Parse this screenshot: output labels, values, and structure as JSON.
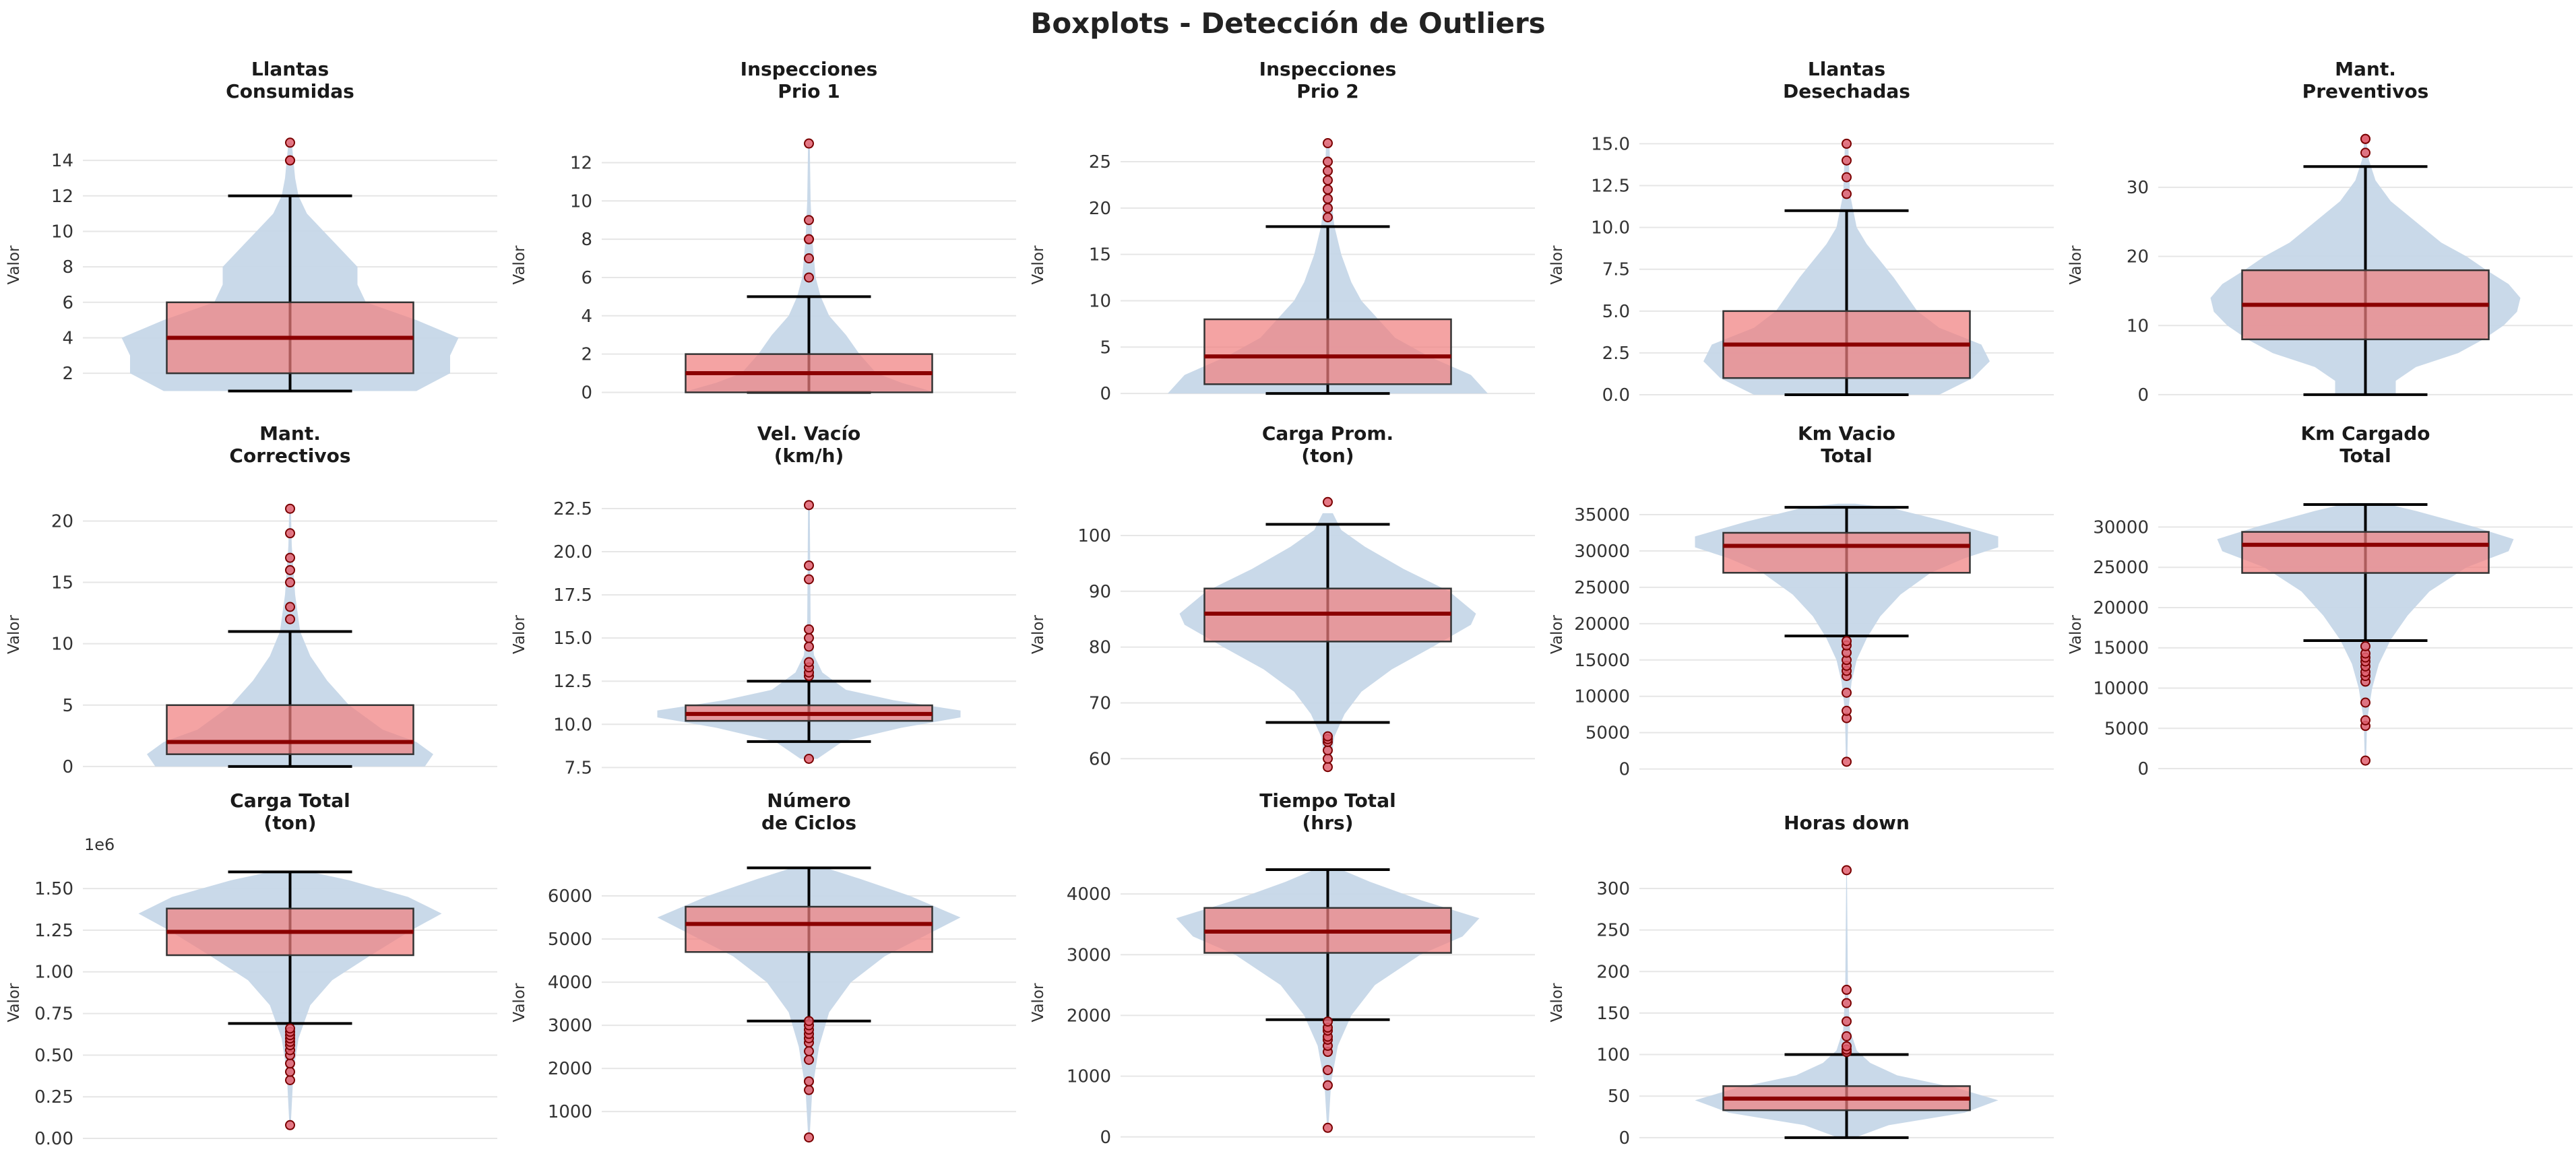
{
  "title": "Boxplots - Detección de Outliers",
  "colors": {
    "violin": "#c6d7e8",
    "box_fill": "#f08080",
    "box_edge": "#333333",
    "median": "#8b0000",
    "whisker": "#000000",
    "outlier_fill": "#e06070",
    "grid": "#e6e6e6"
  },
  "chart_data": [
    {
      "type": "violin-box",
      "title": [
        "Llantas",
        "Consumidas"
      ],
      "ylabel": "Valor",
      "ylim": [
        0.6,
        15.6
      ],
      "ticks": [
        2,
        4,
        6,
        8,
        10,
        12,
        14
      ],
      "tick_labels": [
        "2",
        "4",
        "6",
        "8",
        "10",
        "12",
        "14"
      ],
      "box": {
        "whislo": 1,
        "q1": 2,
        "med": 4,
        "q3": 6,
        "whishi": 12
      },
      "outliers": [
        14,
        14,
        15
      ],
      "violin": [
        [
          1,
          0.75
        ],
        [
          2,
          0.95
        ],
        [
          3,
          0.95
        ],
        [
          4,
          1.0
        ],
        [
          5,
          0.75
        ],
        [
          6,
          0.45
        ],
        [
          7,
          0.4
        ],
        [
          8,
          0.4
        ],
        [
          9,
          0.3
        ],
        [
          10,
          0.2
        ],
        [
          11,
          0.1
        ],
        [
          12,
          0.05
        ],
        [
          13,
          0.03
        ],
        [
          15,
          0.01
        ]
      ]
    },
    {
      "type": "violin-box",
      "title": [
        "Inspecciones",
        "Prio 1"
      ],
      "ylabel": "Valor",
      "ylim": [
        -0.3,
        13.6
      ],
      "ticks": [
        0,
        2,
        4,
        6,
        8,
        10,
        12
      ],
      "tick_labels": [
        "0",
        "2",
        "4",
        "6",
        "8",
        "10",
        "12"
      ],
      "box": {
        "whislo": 0,
        "q1": 0,
        "med": 1,
        "q3": 2,
        "whishi": 5
      },
      "outliers": [
        6,
        7,
        8,
        8,
        9,
        13
      ],
      "violin": [
        [
          0,
          0.75
        ],
        [
          0.5,
          0.55
        ],
        [
          1,
          0.4
        ],
        [
          2,
          0.3
        ],
        [
          3,
          0.22
        ],
        [
          4,
          0.12
        ],
        [
          5,
          0.07
        ],
        [
          6,
          0.04
        ],
        [
          8,
          0.02
        ],
        [
          10,
          0.01
        ],
        [
          13,
          0.005
        ]
      ]
    },
    {
      "type": "violin-box",
      "title": [
        "Inspecciones",
        "Prio 2"
      ],
      "ylabel": "Valor",
      "ylim": [
        -0.5,
        28.2
      ],
      "ticks": [
        0,
        5,
        10,
        15,
        20,
        25
      ],
      "tick_labels": [
        "0",
        "5",
        "10",
        "15",
        "20",
        "25"
      ],
      "box": {
        "whislo": 0,
        "q1": 1,
        "med": 4,
        "q3": 8,
        "whishi": 18
      },
      "outliers": [
        19,
        20,
        21,
        22,
        23,
        24,
        25,
        27
      ],
      "violin": [
        [
          0,
          0.95
        ],
        [
          2,
          0.85
        ],
        [
          4,
          0.6
        ],
        [
          6,
          0.4
        ],
        [
          8,
          0.3
        ],
        [
          10,
          0.2
        ],
        [
          12,
          0.14
        ],
        [
          15,
          0.08
        ],
        [
          18,
          0.04
        ],
        [
          21,
          0.02
        ],
        [
          27,
          0.01
        ]
      ]
    },
    {
      "type": "violin-box",
      "title": [
        "Llantas",
        "Desechadas"
      ],
      "ylabel": "Valor",
      "ylim": [
        -0.2,
        15.7
      ],
      "ticks": [
        0,
        2.5,
        5,
        7.5,
        10,
        12.5,
        15
      ],
      "tick_labels": [
        "0.0",
        "2.5",
        "5.0",
        "7.5",
        "10.0",
        "12.5",
        "15.0"
      ],
      "box": {
        "whislo": 0,
        "q1": 1,
        "med": 3,
        "q3": 5,
        "whishi": 11
      },
      "outliers": [
        12,
        13,
        14,
        15
      ],
      "violin": [
        [
          0,
          0.55
        ],
        [
          1,
          0.75
        ],
        [
          2,
          0.85
        ],
        [
          3,
          0.8
        ],
        [
          4,
          0.55
        ],
        [
          5,
          0.42
        ],
        [
          6,
          0.35
        ],
        [
          7,
          0.28
        ],
        [
          8,
          0.2
        ],
        [
          9,
          0.12
        ],
        [
          10,
          0.06
        ],
        [
          12,
          0.02
        ],
        [
          15,
          0.01
        ]
      ]
    },
    {
      "type": "violin-box",
      "title": [
        "Mant.",
        "Preventivos"
      ],
      "ylabel": "Valor",
      "ylim": [
        -0.5,
        38
      ],
      "ticks": [
        0,
        10,
        20,
        30
      ],
      "tick_labels": [
        "0",
        "10",
        "20",
        "30"
      ],
      "box": {
        "whislo": 0,
        "q1": 8,
        "med": 13,
        "q3": 18,
        "whishi": 33
      },
      "outliers": [
        35,
        37,
        37
      ],
      "violin": [
        [
          0,
          0.18
        ],
        [
          2,
          0.18
        ],
        [
          4,
          0.3
        ],
        [
          6,
          0.55
        ],
        [
          8,
          0.7
        ],
        [
          10,
          0.82
        ],
        [
          12,
          0.9
        ],
        [
          14,
          0.92
        ],
        [
          16,
          0.85
        ],
        [
          18,
          0.72
        ],
        [
          20,
          0.6
        ],
        [
          22,
          0.45
        ],
        [
          25,
          0.3
        ],
        [
          28,
          0.15
        ],
        [
          31,
          0.06
        ],
        [
          34,
          0.02
        ],
        [
          37,
          0.005
        ]
      ]
    },
    {
      "type": "violin-box",
      "title": [
        "Mant.",
        "Correctivos"
      ],
      "ylabel": "Valor",
      "ylim": [
        -0.5,
        22
      ],
      "ticks": [
        0,
        5,
        10,
        15,
        20
      ],
      "tick_labels": [
        "0",
        "5",
        "10",
        "15",
        "20"
      ],
      "box": {
        "whislo": 0,
        "q1": 1,
        "med": 2,
        "q3": 5,
        "whishi": 11
      },
      "outliers": [
        12,
        13,
        15,
        16,
        17,
        19,
        21
      ],
      "violin": [
        [
          0,
          0.8
        ],
        [
          1,
          0.85
        ],
        [
          2,
          0.75
        ],
        [
          3,
          0.55
        ],
        [
          5,
          0.35
        ],
        [
          7,
          0.22
        ],
        [
          9,
          0.12
        ],
        [
          11,
          0.06
        ],
        [
          14,
          0.03
        ],
        [
          18,
          0.01
        ],
        [
          21,
          0.005
        ]
      ]
    },
    {
      "type": "violin-box",
      "title": [
        "Vel. Vacío",
        "(km/h)"
      ],
      "ylabel": "Valor",
      "ylim": [
        7.2,
        23.2
      ],
      "ticks": [
        7.5,
        10,
        12.5,
        15,
        17.5,
        20,
        22.5
      ],
      "tick_labels": [
        "7.5",
        "10.0",
        "12.5",
        "15.0",
        "17.5",
        "20.0",
        "22.5"
      ],
      "box": {
        "whislo": 9,
        "q1": 10.2,
        "med": 10.6,
        "q3": 11.1,
        "whishi": 12.5
      },
      "outliers": [
        8,
        12.8,
        13.0,
        13.3,
        13.6,
        14.5,
        15.0,
        15.5,
        18.4,
        19.2,
        22.7
      ],
      "violin": [
        [
          8,
          0.05
        ],
        [
          9,
          0.2
        ],
        [
          9.8,
          0.55
        ],
        [
          10.4,
          0.9
        ],
        [
          10.8,
          0.9
        ],
        [
          11.4,
          0.5
        ],
        [
          12,
          0.22
        ],
        [
          13,
          0.08
        ],
        [
          14,
          0.03
        ],
        [
          16,
          0.01
        ],
        [
          22.7,
          0.005
        ]
      ]
    },
    {
      "type": "violin-box",
      "title": [
        "Carga Prom.",
        "(ton)"
      ],
      "ylabel": "Valor",
      "ylim": [
        57.5,
        107
      ],
      "ticks": [
        60,
        70,
        80,
        90,
        100
      ],
      "tick_labels": [
        "60",
        "70",
        "80",
        "90",
        "100"
      ],
      "box": {
        "whislo": 66.5,
        "q1": 81,
        "med": 86,
        "q3": 90.5,
        "whishi": 102
      },
      "outliers": [
        58.5,
        60,
        61.5,
        63,
        63.5,
        64,
        106
      ],
      "violin": [
        [
          60,
          0.02
        ],
        [
          64,
          0.04
        ],
        [
          68,
          0.1
        ],
        [
          72,
          0.2
        ],
        [
          76,
          0.38
        ],
        [
          80,
          0.62
        ],
        [
          84,
          0.85
        ],
        [
          86,
          0.88
        ],
        [
          90,
          0.72
        ],
        [
          94,
          0.45
        ],
        [
          98,
          0.22
        ],
        [
          101,
          0.08
        ],
        [
          104,
          0.03
        ]
      ]
    },
    {
      "type": "violin-box",
      "title": [
        "Km Vacio",
        "Total"
      ],
      "ylabel": "Valor",
      "ylim": [
        -500,
        37500
      ],
      "ticks": [
        0,
        5000,
        10000,
        15000,
        20000,
        25000,
        30000,
        35000
      ],
      "tick_labels": [
        "0",
        "5000",
        "10000",
        "15000",
        "20000",
        "25000",
        "30000",
        "35000"
      ],
      "box": {
        "whislo": 18300,
        "q1": 27000,
        "med": 30700,
        "q3": 32500,
        "whishi": 36000
      },
      "outliers": [
        1000,
        7000,
        8000,
        10500,
        12800,
        13500,
        14200,
        15000,
        16000,
        17000,
        17600
      ],
      "violin": [
        [
          1000,
          0.004
        ],
        [
          8000,
          0.01
        ],
        [
          12000,
          0.03
        ],
        [
          15000,
          0.06
        ],
        [
          18000,
          0.12
        ],
        [
          21000,
          0.2
        ],
        [
          24000,
          0.32
        ],
        [
          27000,
          0.5
        ],
        [
          29000,
          0.7
        ],
        [
          30500,
          0.9
        ],
        [
          32000,
          0.9
        ],
        [
          34000,
          0.6
        ],
        [
          36000,
          0.25
        ],
        [
          36500,
          0.05
        ]
      ]
    },
    {
      "type": "violin-box",
      "title": [
        "Km Cargado",
        "Total"
      ],
      "ylabel": "Valor",
      "ylim": [
        -500,
        33800
      ],
      "ticks": [
        0,
        5000,
        10000,
        15000,
        20000,
        25000,
        30000
      ],
      "tick_labels": [
        "0",
        "5000",
        "10000",
        "15000",
        "20000",
        "25000",
        "30000"
      ],
      "box": {
        "whislo": 15900,
        "q1": 24300,
        "med": 27800,
        "q3": 29400,
        "whishi": 32800
      },
      "outliers": [
        1000,
        5300,
        6000,
        8200,
        10800,
        11500,
        12000,
        12700,
        13300,
        13800,
        14300,
        15200
      ],
      "violin": [
        [
          1000,
          0.004
        ],
        [
          6000,
          0.01
        ],
        [
          10000,
          0.04
        ],
        [
          13000,
          0.08
        ],
        [
          16000,
          0.15
        ],
        [
          19000,
          0.25
        ],
        [
          22000,
          0.38
        ],
        [
          25000,
          0.6
        ],
        [
          27000,
          0.85
        ],
        [
          28500,
          0.88
        ],
        [
          30000,
          0.65
        ],
        [
          32000,
          0.3
        ],
        [
          33000,
          0.1
        ]
      ]
    },
    {
      "type": "violin-box",
      "title": [
        "Carga Total",
        "(ton)"
      ],
      "ylabel": "Valor",
      "offset_label": "1e6",
      "ylim": [
        -0.02,
        1.65
      ],
      "ticks": [
        0,
        0.25,
        0.5,
        0.75,
        1.0,
        1.25,
        1.5
      ],
      "tick_labels": [
        "0.00",
        "0.25",
        "0.50",
        "0.75",
        "1.00",
        "1.25",
        "1.50"
      ],
      "box": {
        "whislo": 0.69,
        "q1": 1.1,
        "med": 1.24,
        "q3": 1.38,
        "whishi": 1.6
      },
      "outliers": [
        0.08,
        0.35,
        0.4,
        0.45,
        0.5,
        0.53,
        0.56,
        0.58,
        0.6,
        0.62,
        0.64,
        0.66
      ],
      "violin": [
        [
          0.08,
          0.004
        ],
        [
          0.4,
          0.02
        ],
        [
          0.6,
          0.05
        ],
        [
          0.8,
          0.12
        ],
        [
          0.95,
          0.25
        ],
        [
          1.1,
          0.48
        ],
        [
          1.25,
          0.72
        ],
        [
          1.35,
          0.9
        ],
        [
          1.45,
          0.7
        ],
        [
          1.55,
          0.35
        ],
        [
          1.6,
          0.12
        ]
      ]
    },
    {
      "type": "violin-box",
      "title": [
        "Número",
        "de Ciclos"
      ],
      "ylabel": "Valor",
      "ylim": [
        300,
        6750
      ],
      "ticks": [
        1000,
        2000,
        3000,
        4000,
        5000,
        6000
      ],
      "tick_labels": [
        "1000",
        "2000",
        "3000",
        "4000",
        "5000",
        "6000"
      ],
      "box": {
        "whislo": 3100,
        "q1": 4700,
        "med": 5350,
        "q3": 5750,
        "whishi": 6650
      },
      "outliers": [
        400,
        1500,
        1700,
        2200,
        2400,
        2600,
        2700,
        2800,
        2900,
        3000,
        3100
      ],
      "violin": [
        [
          400,
          0.004
        ],
        [
          1500,
          0.02
        ],
        [
          2500,
          0.06
        ],
        [
          3300,
          0.12
        ],
        [
          4000,
          0.25
        ],
        [
          4600,
          0.45
        ],
        [
          5100,
          0.7
        ],
        [
          5500,
          0.9
        ],
        [
          6000,
          0.6
        ],
        [
          6400,
          0.3
        ],
        [
          6650,
          0.1
        ]
      ]
    },
    {
      "type": "violin-box",
      "title": [
        "Tiempo Total",
        "(hrs)"
      ],
      "ylabel": "Valor",
      "ylim": [
        -80,
        4500
      ],
      "ticks": [
        0,
        1000,
        2000,
        3000,
        4000
      ],
      "tick_labels": [
        "0",
        "1000",
        "2000",
        "3000",
        "4000"
      ],
      "box": {
        "whislo": 1930,
        "q1": 3030,
        "med": 3380,
        "q3": 3770,
        "whishi": 4400
      },
      "outliers": [
        150,
        850,
        1100,
        1400,
        1500,
        1600,
        1650,
        1750,
        1800,
        1900
      ],
      "violin": [
        [
          150,
          0.004
        ],
        [
          900,
          0.02
        ],
        [
          1500,
          0.06
        ],
        [
          2000,
          0.14
        ],
        [
          2500,
          0.28
        ],
        [
          3000,
          0.55
        ],
        [
          3300,
          0.8
        ],
        [
          3600,
          0.9
        ],
        [
          3900,
          0.55
        ],
        [
          4200,
          0.25
        ],
        [
          4400,
          0.08
        ]
      ]
    },
    {
      "type": "violin-box",
      "title": [
        "Horas down"
      ],
      "ylabel": "Valor",
      "ylim": [
        -5,
        330
      ],
      "ticks": [
        0,
        50,
        100,
        150,
        200,
        250,
        300
      ],
      "tick_labels": [
        "0",
        "50",
        "100",
        "150",
        "200",
        "250",
        "300"
      ],
      "box": {
        "whislo": 0,
        "q1": 33,
        "med": 47,
        "q3": 62,
        "whishi": 100
      },
      "outliers": [
        103,
        106,
        110,
        122,
        140,
        162,
        178,
        322
      ],
      "violin": [
        [
          0,
          0.05
        ],
        [
          15,
          0.25
        ],
        [
          30,
          0.7
        ],
        [
          45,
          0.9
        ],
        [
          60,
          0.65
        ],
        [
          75,
          0.3
        ],
        [
          90,
          0.14
        ],
        [
          105,
          0.06
        ],
        [
          130,
          0.02
        ],
        [
          180,
          0.008
        ],
        [
          322,
          0.002
        ]
      ]
    }
  ]
}
